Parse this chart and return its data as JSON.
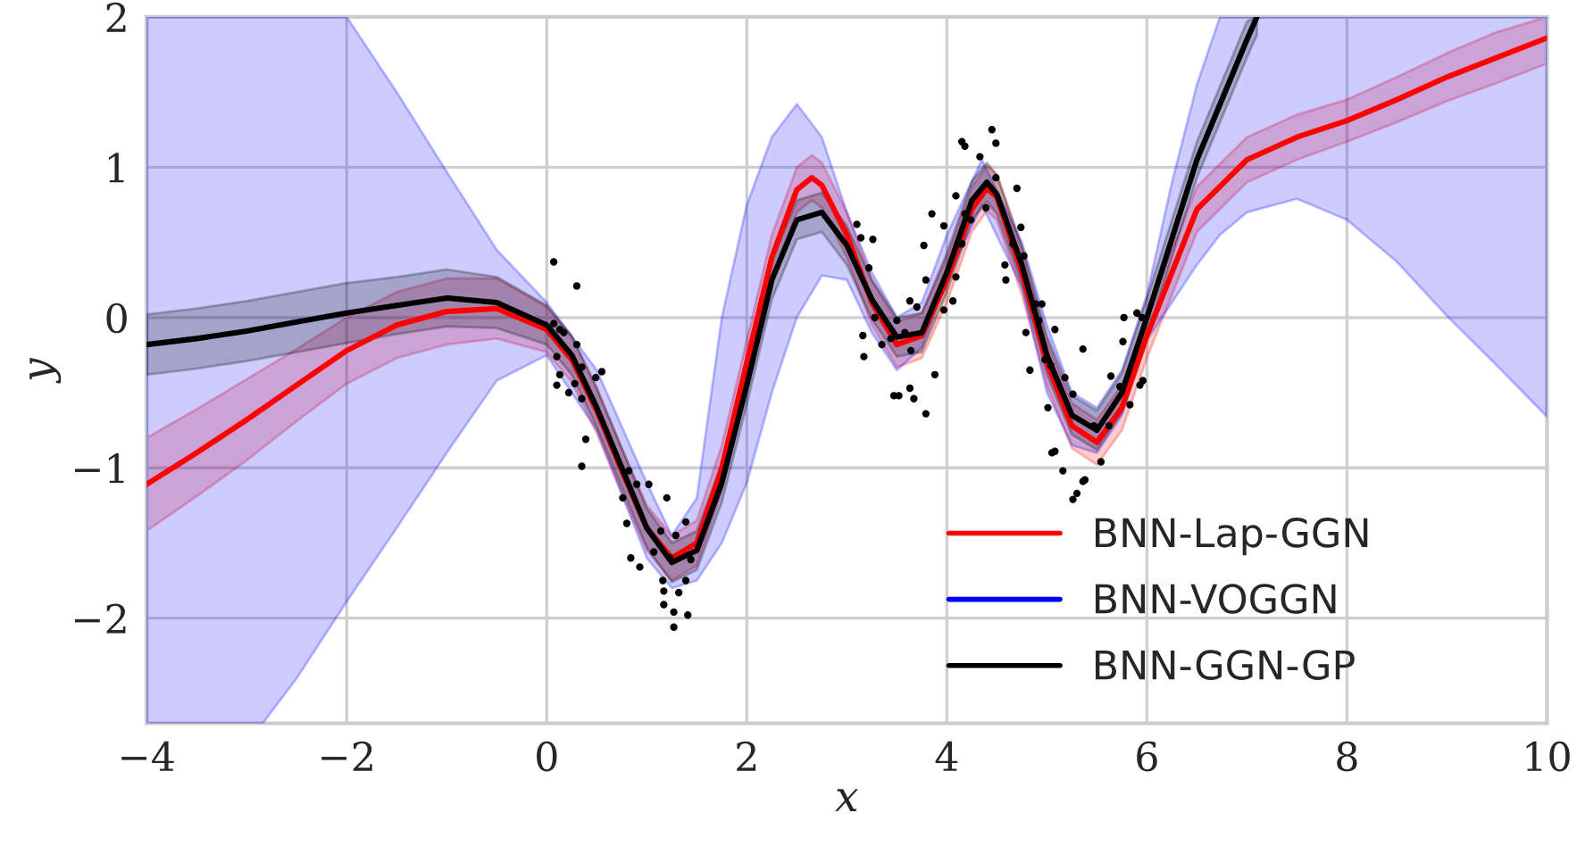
{
  "chart_data": {
    "type": "line",
    "xlabel": "x",
    "ylabel": "y",
    "xlim": [
      -4,
      10
    ],
    "ylim": [
      -2.7,
      2
    ],
    "xticks": [
      {
        "value": -4,
        "label": "−4"
      },
      {
        "value": -2,
        "label": "−2"
      },
      0,
      2,
      4,
      6,
      8,
      10
    ],
    "yticks": [
      {
        "value": -2,
        "label": "−2"
      },
      {
        "value": -1,
        "label": "−1"
      },
      0,
      1,
      2
    ],
    "grid": true,
    "legend": "bottom right",
    "series": [
      {
        "name": "BNN-Lap-GGN",
        "type": "line",
        "color": "#ff0000",
        "x": [
          -4,
          -3.5,
          -3,
          -2.5,
          -2,
          -1.5,
          -1,
          -0.5,
          0,
          0.25,
          0.5,
          0.75,
          1,
          1.25,
          1.5,
          1.75,
          2,
          2.25,
          2.5,
          2.65,
          2.75,
          3,
          3.25,
          3.5,
          3.75,
          4,
          4.25,
          4.4,
          4.5,
          4.75,
          5,
          5.25,
          5.5,
          5.75,
          6,
          6.5,
          7,
          7.5,
          8,
          8.5,
          9,
          9.5,
          10
        ],
        "values": [
          -1.11,
          -0.9,
          -0.68,
          -0.45,
          -0.22,
          -0.05,
          0.04,
          0.06,
          -0.08,
          -0.28,
          -0.62,
          -1.02,
          -1.4,
          -1.6,
          -1.5,
          -1.0,
          -0.3,
          0.4,
          0.85,
          0.93,
          0.88,
          0.55,
          0.1,
          -0.18,
          -0.12,
          0.25,
          0.72,
          0.86,
          0.8,
          0.3,
          -0.3,
          -0.72,
          -0.83,
          -0.6,
          -0.12,
          0.72,
          1.05,
          1.2,
          1.31,
          1.45,
          1.6,
          1.73,
          1.86
        ],
        "lower": [
          -1.42,
          -1.19,
          -0.95,
          -0.69,
          -0.44,
          -0.27,
          -0.18,
          -0.14,
          -0.23,
          -0.43,
          -0.77,
          -1.17,
          -1.55,
          -1.75,
          -1.65,
          -1.15,
          -0.45,
          0.25,
          0.7,
          0.78,
          0.73,
          0.4,
          -0.05,
          -0.33,
          -0.27,
          0.1,
          0.57,
          0.71,
          0.65,
          0.15,
          -0.45,
          -0.87,
          -0.98,
          -0.75,
          -0.27,
          0.57,
          0.9,
          1.05,
          1.17,
          1.3,
          1.44,
          1.56,
          1.69
        ],
        "upper": [
          -0.8,
          -0.61,
          -0.41,
          -0.21,
          0.0,
          0.17,
          0.26,
          0.26,
          0.07,
          -0.13,
          -0.47,
          -0.87,
          -1.25,
          -1.45,
          -1.35,
          -0.85,
          -0.15,
          0.55,
          1.0,
          1.08,
          1.03,
          0.7,
          0.25,
          -0.03,
          0.03,
          0.4,
          0.87,
          1.01,
          0.95,
          0.45,
          -0.15,
          -0.57,
          -0.68,
          -0.45,
          0.03,
          0.87,
          1.2,
          1.35,
          1.45,
          1.6,
          1.76,
          1.9,
          2.0
        ]
      },
      {
        "name": "BNN-VOGGN",
        "type": "line",
        "color": "#0000ff",
        "x": [
          -4,
          -3.5,
          -3,
          -2.84,
          -2.5,
          -2,
          -1.5,
          -1,
          -0.5,
          0,
          0.5,
          1,
          1.25,
          1.5,
          1.75,
          2,
          2.25,
          2.5,
          2.75,
          3,
          3.25,
          3.5,
          3.75,
          4,
          4.35,
          4.75,
          5,
          5.25,
          5.5,
          5.75,
          6,
          6.25,
          6.5,
          6.73,
          7,
          7.5,
          8,
          8.5,
          9,
          9.5,
          10
        ],
        "values": [
          null,
          null,
          null,
          null,
          null,
          null,
          null,
          null,
          null,
          null,
          null,
          null,
          null,
          null,
          null,
          null,
          null,
          null,
          null,
          null,
          null,
          null,
          null,
          null,
          null,
          null,
          null,
          null,
          null,
          null,
          null,
          null,
          null,
          null,
          null,
          null,
          null,
          null,
          null,
          null,
          null
        ],
        "upper": [
          2.0,
          2.0,
          2.0,
          2.0,
          2.0,
          2.0,
          1.5,
          0.97,
          0.45,
          0.1,
          -0.35,
          -1.1,
          -1.45,
          -1.2,
          0.0,
          0.75,
          1.2,
          1.42,
          1.2,
          0.7,
          0.3,
          0.0,
          0.1,
          0.55,
          1.05,
          0.5,
          -0.05,
          -0.5,
          -0.6,
          -0.35,
          0.15,
          0.9,
          1.55,
          2.0,
          2.0,
          2.0,
          2.0,
          2.0,
          2.0,
          2.0,
          2.0
        ],
        "lower": [
          -2.7,
          -2.7,
          -2.7,
          -2.7,
          -2.4,
          -1.89,
          -1.4,
          -0.9,
          -0.42,
          -0.25,
          -0.75,
          -1.6,
          -1.8,
          -1.75,
          -1.5,
          -1.1,
          -0.5,
          0.0,
          0.28,
          0.25,
          -0.1,
          -0.35,
          -0.2,
          0.25,
          0.75,
          0.2,
          -0.5,
          -0.85,
          -0.9,
          -0.65,
          -0.15,
          0.1,
          0.35,
          0.55,
          0.7,
          0.79,
          0.65,
          0.37,
          0.01,
          -0.32,
          -0.66
        ]
      },
      {
        "name": "BNN-GGN-GP",
        "type": "line",
        "color": "#000000",
        "x": [
          -4,
          -3.5,
          -3,
          -2.5,
          -2,
          -1.5,
          -1,
          -0.5,
          0,
          0.25,
          0.5,
          0.75,
          1,
          1.25,
          1.5,
          1.75,
          2,
          2.25,
          2.5,
          2.75,
          3,
          3.25,
          3.5,
          3.75,
          4,
          4.25,
          4.4,
          4.5,
          4.75,
          5,
          5.25,
          5.5,
          5.75,
          6,
          6.5,
          7,
          7.1
        ],
        "values": [
          -0.18,
          -0.14,
          -0.09,
          -0.03,
          0.03,
          0.08,
          0.13,
          0.1,
          -0.05,
          -0.25,
          -0.6,
          -1.0,
          -1.4,
          -1.63,
          -1.55,
          -1.1,
          -0.45,
          0.25,
          0.65,
          0.7,
          0.48,
          0.12,
          -0.13,
          -0.1,
          0.3,
          0.78,
          0.9,
          0.82,
          0.35,
          -0.25,
          -0.65,
          -0.75,
          -0.5,
          0.0,
          1.05,
          1.85,
          2.0
        ],
        "lower": [
          -0.38,
          -0.34,
          -0.29,
          -0.23,
          -0.17,
          -0.11,
          -0.06,
          -0.07,
          -0.18,
          -0.38,
          -0.73,
          -1.13,
          -1.53,
          -1.76,
          -1.68,
          -1.23,
          -0.58,
          0.12,
          0.52,
          0.57,
          0.35,
          -0.01,
          -0.26,
          -0.23,
          0.17,
          0.65,
          0.77,
          0.69,
          0.22,
          -0.38,
          -0.78,
          -0.88,
          -0.63,
          -0.13,
          0.93,
          1.73,
          1.88
        ],
        "upper": [
          0.02,
          0.06,
          0.11,
          0.17,
          0.23,
          0.27,
          0.32,
          0.27,
          0.08,
          -0.12,
          -0.47,
          -0.87,
          -1.27,
          -1.5,
          -1.42,
          -0.97,
          -0.32,
          0.38,
          0.78,
          0.83,
          0.61,
          0.25,
          0.0,
          0.03,
          0.43,
          0.91,
          1.03,
          0.95,
          0.48,
          -0.12,
          -0.52,
          -0.62,
          -0.37,
          0.13,
          1.17,
          1.97,
          2.0
        ]
      },
      {
        "type": "scatter",
        "color": "#000000",
        "x": [
          0.07,
          0.3,
          0.07,
          0.13,
          0.17,
          0.1,
          0.1,
          0.13,
          0.22,
          0.28,
          0.3,
          0.35,
          0.35,
          0.49,
          0.55,
          0.39,
          0.35,
          0.82,
          0.9,
          1.02,
          0.76,
          0.8,
          1.2,
          0.84,
          0.93,
          1.07,
          1.14,
          1.29,
          1.39,
          1.23,
          1.16,
          1.17,
          1.27,
          1.27,
          1.41,
          1.17,
          1.39,
          1.32,
          1.44,
          3.1,
          3.14,
          3.26,
          3.22,
          3.16,
          3.17,
          3.35,
          3.44,
          3.47,
          3.52,
          3.63,
          3.67,
          3.79,
          3.88,
          3.63,
          3.7,
          3.5,
          3.58,
          3.64,
          3.77,
          3.79,
          3.97,
          4.06,
          4.09,
          4.11,
          3.97,
          4.24,
          4.18,
          4.15,
          4.18,
          4.45,
          4.49,
          4.33,
          4.09,
          3.85,
          4.15,
          4.39,
          4.49,
          4.7,
          4.74,
          4.77,
          4.58,
          4.59,
          4.66,
          4.89,
          4.95,
          4.92,
          4.79,
          5.08,
          4.83,
          4.98,
          5.04,
          5.01,
          5.05,
          5.08,
          5.16,
          5.18,
          5.26,
          5.36,
          5.36,
          5.38,
          5.3,
          5.26,
          5.54,
          5.47,
          5.62,
          5.64,
          5.73,
          5.83,
          5.76,
          5.77,
          5.9,
          5.95,
          5.96,
          5.93,
          3.28
        ],
        "values": [
          0.37,
          0.21,
          -0.04,
          -0.08,
          -0.1,
          -0.26,
          -0.45,
          -0.38,
          -0.5,
          -0.44,
          -0.18,
          -0.33,
          -0.54,
          -0.4,
          -0.36,
          -0.81,
          -0.99,
          -1.02,
          -1.11,
          -1.11,
          -1.2,
          -1.37,
          -1.2,
          -1.6,
          -1.66,
          -1.56,
          -1.42,
          -1.45,
          -1.36,
          -1.6,
          -1.75,
          -1.91,
          -1.96,
          -2.06,
          -1.98,
          -1.82,
          -1.75,
          -1.83,
          -1.61,
          0.62,
          0.53,
          0.52,
          0.33,
          -0.12,
          -0.26,
          -0.18,
          -0.14,
          -0.52,
          -0.52,
          -0.47,
          -0.54,
          -0.64,
          -0.38,
          0.11,
          0.07,
          -0.02,
          -0.1,
          -0.22,
          0.48,
          0.25,
          0.05,
          0.11,
          0.27,
          0.49,
          0.61,
          0.65,
          0.69,
          1.17,
          1.14,
          1.25,
          1.16,
          1.07,
          0.81,
          0.69,
          0.49,
          0.73,
          0.93,
          0.86,
          0.6,
          0.41,
          0.35,
          0.25,
          0.49,
          0.09,
          0.09,
          -0.02,
          -0.1,
          -0.08,
          -0.35,
          -0.28,
          -0.32,
          -0.6,
          -0.9,
          -0.89,
          -1.02,
          -0.4,
          -0.51,
          -0.21,
          -1.09,
          -1.08,
          -1.17,
          -1.21,
          -0.96,
          -0.72,
          -0.72,
          -0.39,
          -0.46,
          -0.58,
          -0.16,
          0.0,
          0.03,
          0.0,
          -0.42,
          -0.45,
          0.0
        ]
      }
    ]
  }
}
